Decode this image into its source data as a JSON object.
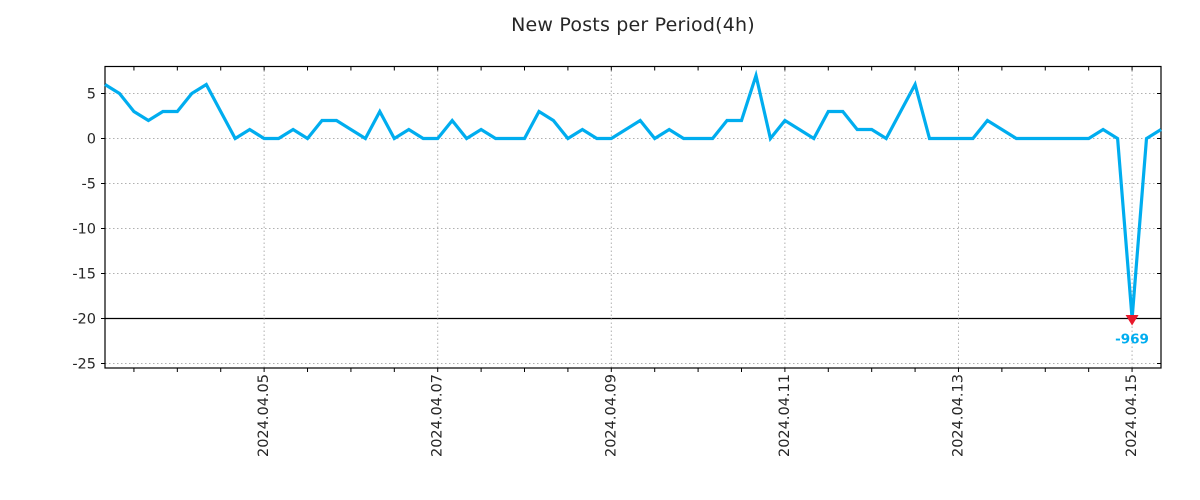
{
  "figure": {
    "background": "#ffffff"
  },
  "chart_data": {
    "type": "line",
    "title": "New Posts per Period(4h)",
    "x_start": "2024-04-03 04:00",
    "x_step_hours": 4,
    "series": [
      {
        "name": "new posts",
        "color": "#00ADEF",
        "values": [
          6,
          5,
          3,
          2,
          3,
          3,
          5,
          6,
          3,
          0,
          1,
          0,
          0,
          1,
          0,
          2,
          2,
          1,
          0,
          3,
          0,
          1,
          0,
          0,
          2,
          0,
          1,
          0,
          0,
          0,
          3,
          2,
          0,
          1,
          0,
          0,
          1,
          2,
          0,
          1,
          0,
          0,
          0,
          2,
          2,
          7,
          0,
          2,
          1,
          0,
          3,
          3,
          1,
          1,
          0,
          3,
          6,
          0,
          0,
          0,
          0,
          2,
          1,
          0,
          0,
          0,
          0,
          0,
          0,
          1,
          0,
          -969,
          0,
          1
        ]
      }
    ],
    "x_tick_labels": [
      "2024.04.05",
      "2024.04.07",
      "2024.04.09",
      "2024.04.11",
      "2024.04.13",
      "2024.04.15"
    ],
    "x_tick_indices": [
      11,
      23,
      35,
      47,
      59,
      71
    ],
    "x_minor_tick_every_points": 3,
    "y_ticks": [
      5,
      0,
      -5,
      -10,
      -15,
      -20,
      -25
    ],
    "ylim": [
      -25.5,
      8
    ],
    "grid": true,
    "grid_color": "#b0b0b0",
    "frame_color": "#000000",
    "text_color": "#262626",
    "clip_line_value": -20,
    "clip_line_color": "#000000",
    "annotation": {
      "text": "-969",
      "value": -969,
      "index": 71,
      "marker": "triangle-down",
      "marker_color": "#e8192c",
      "label_color": "#00ADEF"
    },
    "legend": null
  }
}
